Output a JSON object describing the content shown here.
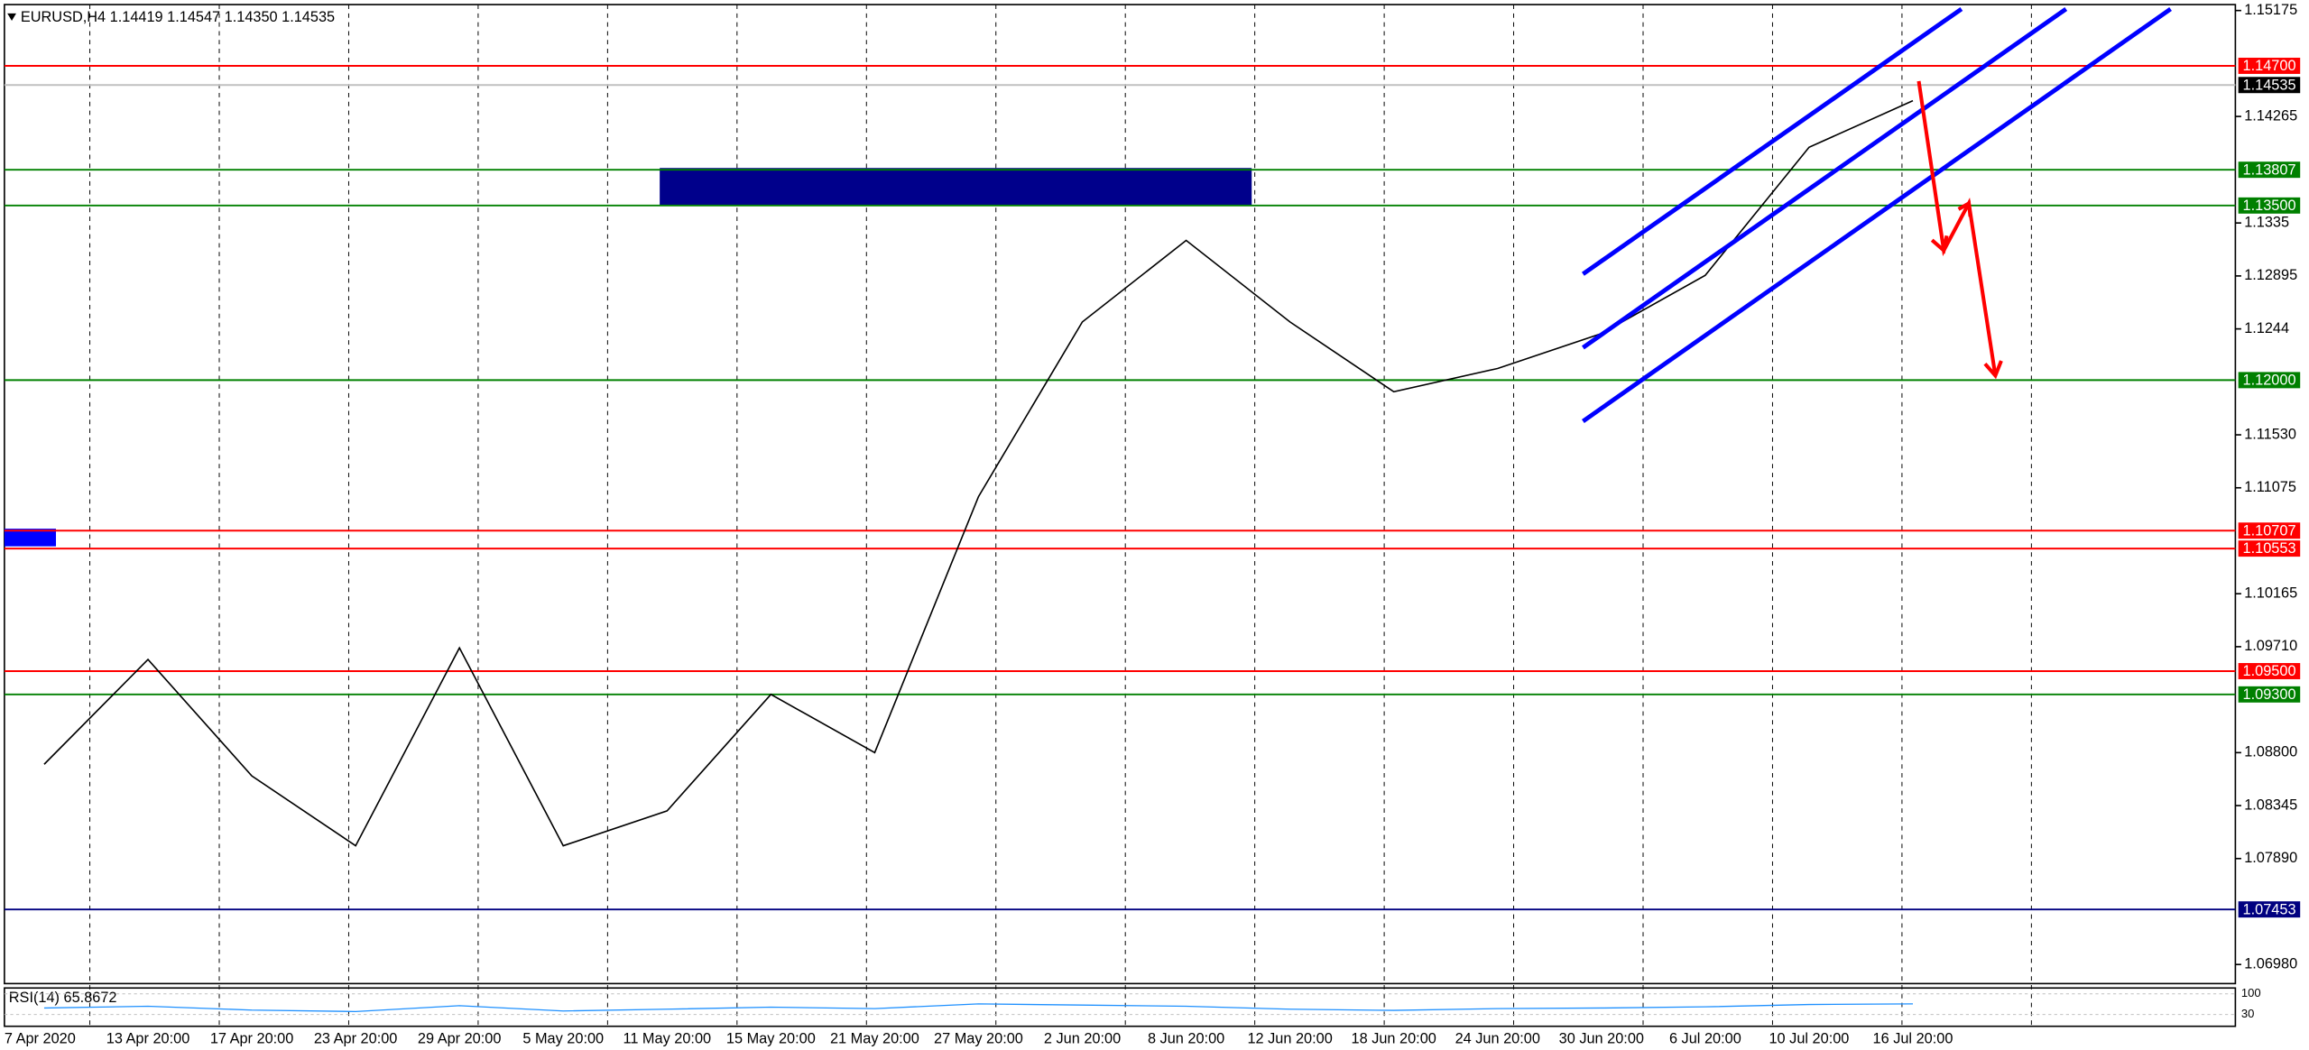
{
  "header": {
    "title": "EURUSD,H4  1.14419 1.14547 1.14350 1.14535"
  },
  "chart_data": {
    "type": "line",
    "categories": [
      "7 Apr 2020",
      "13 Apr 20:00",
      "17 Apr 20:00",
      "23 Apr 20:00",
      "29 Apr 20:00",
      "5 May 20:00",
      "11 May 20:00",
      "15 May 20:00",
      "21 May 20:00",
      "27 May 20:00",
      "2 Jun 20:00",
      "8 Jun 20:00",
      "12 Jun 20:00",
      "18 Jun 20:00",
      "24 Jun 20:00",
      "30 Jun 20:00",
      "6 Jul 20:00",
      "10 Jul 20:00",
      "16 Jul 20:00"
    ],
    "values": [
      1.087,
      1.096,
      1.086,
      1.08,
      1.097,
      1.08,
      1.083,
      1.093,
      1.088,
      1.11,
      1.125,
      1.132,
      1.125,
      1.119,
      1.121,
      1.124,
      1.129,
      1.14,
      1.144
    ],
    "color": "#000000",
    "ylim": [
      1.06816,
      1.15226
    ],
    "yticks": [
      1.15175,
      1.14265,
      1.1335,
      1.12895,
      1.1244,
      {
        "value": 1.1153,
        "label": "1.11530"
      },
      1.11075,
      1.10165,
      {
        "value": 1.0971,
        "label": "1.09710"
      },
      {
        "value": 1.088,
        "label": "1.08800"
      },
      1.08345,
      {
        "value": 1.0789,
        "label": "1.07890"
      },
      {
        "value": 1.0698,
        "label": "1.06980"
      }
    ],
    "levels": [
      {
        "value": 1.147,
        "label": "1.14700",
        "color": "#ff0000"
      },
      {
        "value": 1.14535,
        "label": "1.14535",
        "color": "#000000"
      },
      {
        "value": 1.13807,
        "label": "1.13807",
        "color": "#008000"
      },
      {
        "value": 1.135,
        "label": "1.13500",
        "color": "#008000"
      },
      {
        "value": 1.12,
        "label": "1.12000",
        "color": "#008000"
      },
      {
        "value": 1.10707,
        "label": "1.10707",
        "color": "#ff0000"
      },
      {
        "value": 1.10553,
        "label": "1.10553",
        "color": "#ff0000"
      },
      {
        "value": 1.095,
        "label": "1.09500",
        "color": "#ff0000"
      },
      {
        "value": 1.093,
        "label": "1.09300",
        "color": "#008000"
      },
      {
        "value": 1.07453,
        "label": "1.07453",
        "color": "#000080"
      }
    ],
    "rsi": {
      "title": "RSI(14) 65.8672",
      "ylim": [
        0,
        100
      ],
      "yticks": [
        100,
        30
      ],
      "color": "#1e90ff",
      "values": [
        52,
        58,
        45,
        40,
        60,
        42,
        48,
        55,
        50,
        66,
        62,
        58,
        48,
        44,
        50,
        52,
        56,
        64,
        66
      ]
    }
  }
}
